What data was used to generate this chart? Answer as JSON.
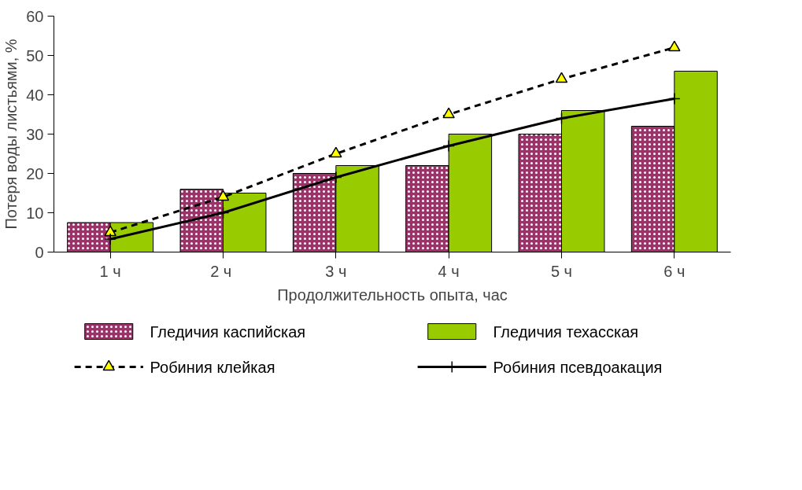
{
  "chart_data": {
    "type": "bar",
    "xlabel": "Продолжительность опыта, час",
    "ylabel": "Потеря воды листьями, %",
    "categories": [
      "1 ч",
      "2  ч",
      "3 ч",
      "4 ч",
      "5 ч",
      "6 ч"
    ],
    "ylim": [
      0,
      60
    ],
    "yticks": [
      0,
      10,
      20,
      30,
      40,
      50,
      60
    ],
    "grid": false,
    "legend": "bottom",
    "series": [
      {
        "name": "Гледичия каспийская",
        "color": "#a0306a",
        "values": [
          7.5,
          16,
          20,
          22,
          30,
          32
        ]
      },
      {
        "name": "Гледичия техасская",
        "color": "#99cc00",
        "values": [
          7.5,
          15,
          22,
          30,
          36,
          46
        ]
      },
      {
        "name": "Робиния клейкая",
        "type": "line",
        "color": "#000000",
        "marker": "triangle",
        "line_style": "dashed",
        "values": [
          5,
          14,
          25,
          35,
          44,
          52
        ]
      },
      {
        "name": "Робиния псевдоакация",
        "type": "line",
        "color": "#000000",
        "marker": "cross",
        "line_style": "solid",
        "values": [
          3.3,
          10,
          19,
          27,
          34,
          39
        ]
      }
    ]
  }
}
